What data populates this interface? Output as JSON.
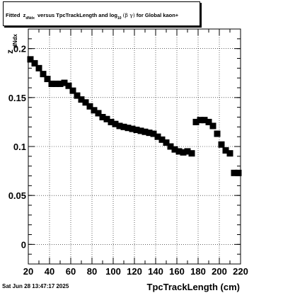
{
  "title": {
    "prefix": "Fitted",
    "z": "z",
    "z_sub": "dNdx",
    "versus": "versus TpcTrackLength and log",
    "log_sub": "10",
    "beta_gamma": "(β  γ)",
    "suffix": "for Global kaon+"
  },
  "footer": {
    "date": "Sat Jun 28 13:47:17 2025"
  },
  "chart_data": {
    "type": "scatter",
    "xlabel": "TpcTrackLength (cm)",
    "ylabel": "z",
    "ylabel_sub": "dNdx",
    "xlim": [
      20,
      220
    ],
    "ylim": [
      -0.02,
      0.22
    ],
    "grid": true,
    "x_ticks": [
      20,
      40,
      60,
      80,
      100,
      120,
      140,
      160,
      180,
      200,
      220
    ],
    "x_tick_labels": [
      "20",
      "40",
      "60",
      "80",
      "100",
      "120",
      "140",
      "160",
      "180",
      "200",
      "220"
    ],
    "y_ticks": [
      0,
      0.05,
      0.1,
      0.15,
      0.2
    ],
    "y_tick_labels": [
      "0",
      "0.05",
      "0.1",
      "0.15",
      "0.2"
    ],
    "marker": "square",
    "marker_color": "#000000",
    "x": [
      22,
      26,
      30,
      34,
      38,
      42,
      46,
      50,
      54,
      58,
      62,
      66,
      70,
      74,
      78,
      82,
      86,
      90,
      94,
      98,
      102,
      106,
      110,
      114,
      118,
      122,
      126,
      130,
      134,
      138,
      142,
      146,
      150,
      154,
      158,
      162,
      166,
      170,
      174,
      178,
      182,
      186,
      190,
      194,
      198,
      202,
      206,
      210,
      214,
      218
    ],
    "y": [
      0.189,
      0.185,
      0.18,
      0.174,
      0.169,
      0.164,
      0.164,
      0.164,
      0.165,
      0.162,
      0.157,
      0.152,
      0.148,
      0.145,
      0.141,
      0.137,
      0.134,
      0.13,
      0.128,
      0.125,
      0.123,
      0.121,
      0.12,
      0.119,
      0.118,
      0.117,
      0.116,
      0.115,
      0.114,
      0.113,
      0.11,
      0.107,
      0.104,
      0.1,
      0.097,
      0.095,
      0.094,
      0.095,
      0.093,
      0.125,
      0.127,
      0.127,
      0.125,
      0.121,
      0.113,
      0.102,
      0.096,
      0.093,
      0.073,
      0.073
    ]
  }
}
